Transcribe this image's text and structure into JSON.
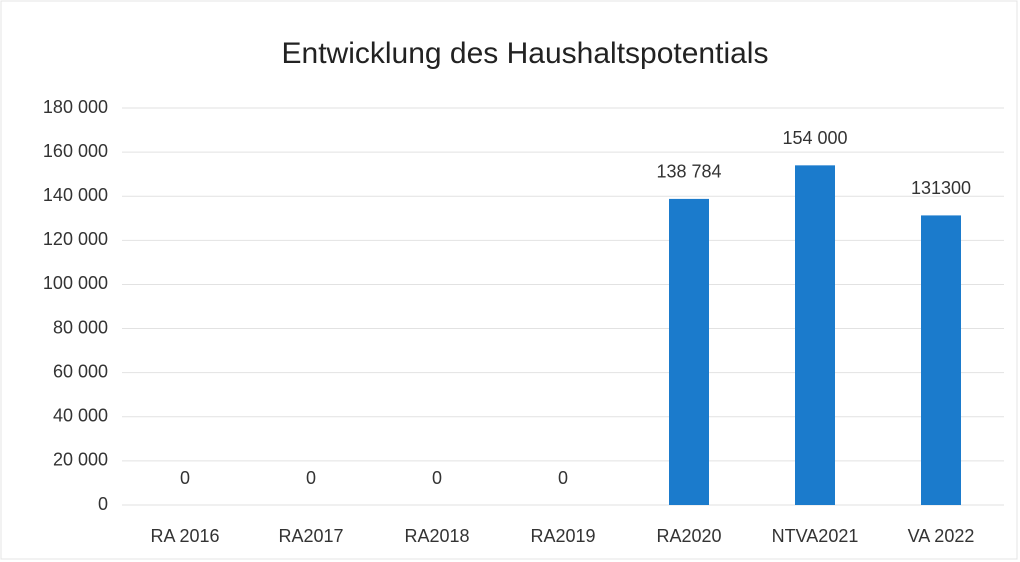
{
  "chart_data": {
    "type": "bar",
    "title": "Entwicklung des Haushaltspotentials",
    "categories": [
      "RA 2016",
      "RA2017",
      "RA2018",
      "RA2019",
      "RA2020",
      "NTVA2021",
      "VA 2022"
    ],
    "values": [
      0,
      0,
      0,
      0,
      138784,
      154000,
      131300
    ],
    "value_labels": [
      "0",
      "0",
      "0",
      "0",
      "138 784",
      "154 000",
      "131300"
    ],
    "color": "#1b7bcc",
    "ylim": [
      0,
      180000
    ],
    "yticks": [
      0,
      {
        "value": 20000,
        "label": "20 000"
      },
      {
        "value": 40000,
        "label": "40 000"
      },
      {
        "value": 60000,
        "label": "60 000"
      },
      {
        "value": 80000,
        "label": "80 000"
      },
      {
        "value": 100000,
        "label": "100 000"
      },
      {
        "value": 120000,
        "label": "120 000"
      },
      {
        "value": 140000,
        "label": "140 000"
      },
      {
        "value": 160000,
        "label": "160 000"
      },
      {
        "value": 180000,
        "label": "180 000"
      }
    ],
    "grid": true
  }
}
